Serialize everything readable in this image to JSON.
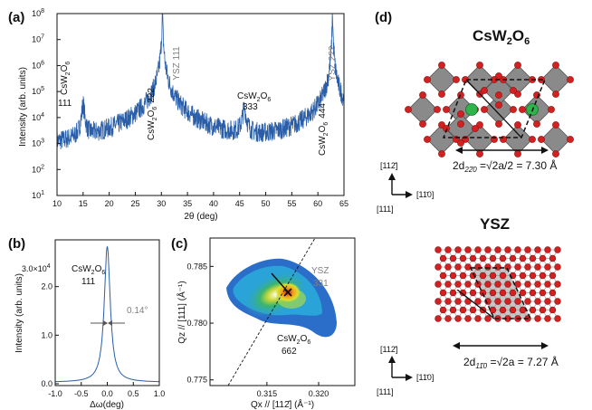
{
  "panels": {
    "a": "(a)",
    "b": "(b)",
    "c": "(c)",
    "d": "(d)"
  },
  "panel_a": {
    "ylabel": "Intensity (arb. units)",
    "xlabel": "2θ (deg)",
    "x_ticks": [
      "10",
      "15",
      "20",
      "25",
      "30",
      "35",
      "40",
      "45",
      "50",
      "55",
      "60",
      "65"
    ],
    "y_ticks": [
      {
        "base": "10",
        "exp": "1"
      },
      {
        "base": "10",
        "exp": "2"
      },
      {
        "base": "10",
        "exp": "3"
      },
      {
        "base": "10",
        "exp": "4"
      },
      {
        "base": "10",
        "exp": "5"
      },
      {
        "base": "10",
        "exp": "6"
      },
      {
        "base": "10",
        "exp": "7"
      },
      {
        "base": "10",
        "exp": "8"
      }
    ],
    "peak_labels": {
      "p111": {
        "compound": "CsW",
        "sub1": "2",
        "mid": "O",
        "sub2": "6",
        "index": "111"
      },
      "p222": {
        "compound": "CsW",
        "sub1": "2",
        "mid": "O",
        "sub2": "6",
        "index": "222"
      },
      "ysz111": "YSZ 111",
      "p333": {
        "compound": "CsW",
        "sub1": "2",
        "mid": "O",
        "sub2": "6",
        "index": "333"
      },
      "p444": {
        "compound": "CsW",
        "sub1": "2",
        "mid": "O",
        "sub2": "6",
        "index": "444"
      },
      "ysz222": "YSZ 222"
    }
  },
  "panel_b": {
    "ylabel": "Intensity (arb. units)",
    "xlabel": "Δω(deg)",
    "x_ticks": [
      "-1.0",
      "-0.5",
      "0.0",
      "0.5",
      "1.0"
    ],
    "y_ticks": [
      "0.0",
      "1.0",
      "2.0"
    ],
    "y_top": {
      "base": "3.0×10",
      "exp": "4"
    },
    "label": {
      "compound": "CsW",
      "sub1": "2",
      "mid": "O",
      "sub2": "6",
      "index": "111"
    },
    "fwhm": "0.14°"
  },
  "panel_c": {
    "ylabel": "Qz // [111] (Å⁻¹)",
    "xlabel": "Qx // [112̄] (Å⁻¹)",
    "x_ticks": [
      "0.315",
      "0.320"
    ],
    "y_ticks": [
      "0.775",
      "0.780",
      "0.785"
    ],
    "ysz_label": "YSZ",
    "ysz_index": "331",
    "csw_label": {
      "compound": "CsW",
      "sub1": "2",
      "mid": "O",
      "sub2": "6",
      "index": "662"
    }
  },
  "panel_d": {
    "top_title": {
      "compound": "CsW",
      "sub1": "2",
      "mid": "O",
      "sub2": "6"
    },
    "top_formula": {
      "pre": "2d",
      "sub": "22̄0",
      "post": " =√2a/2 = 7.30 Å"
    },
    "bottom_title": "YSZ",
    "bottom_formula": {
      "pre": "2d",
      "sub": "11̄0",
      "post": " =√2a = 7.27 Å"
    },
    "dir_up": "[112̄]",
    "dir_right": "[11̄0]",
    "dir_out": "[111]"
  },
  "colors": {
    "trace": "#2a5ea8",
    "gray_label": "#7f7f7f",
    "oxygen": "#d42020",
    "cesium": "#2fb34a",
    "octahedron": "#7d7d7d"
  },
  "chart_data": [
    {
      "type": "line",
      "title": "",
      "xlabel": "2θ (deg)",
      "ylabel": "Intensity (arb. units)",
      "xlim": [
        10,
        65
      ],
      "ylim": [
        10,
        100000000
      ],
      "yscale": "log",
      "peaks": [
        {
          "x": 15.0,
          "y": 30000,
          "label": "CsW2O6 111"
        },
        {
          "x": 30.0,
          "y": 200000,
          "label": "CsW2O6 222"
        },
        {
          "x": 30.2,
          "y": 100000000,
          "label": "YSZ 111"
        },
        {
          "x": 45.9,
          "y": 20000,
          "label": "CsW2O6 333"
        },
        {
          "x": 62.3,
          "y": 3000,
          "label": "CsW2O6 444"
        },
        {
          "x": 62.8,
          "y": 100000000,
          "label": "YSZ 222"
        }
      ]
    },
    {
      "type": "line",
      "title": "",
      "xlabel": "Δω(deg)",
      "ylabel": "Intensity (arb. units)",
      "xlim": [
        -1.0,
        1.0
      ],
      "ylim": [
        0,
        30000
      ],
      "peak_center": 0.0,
      "peak_height": 30000,
      "fwhm_deg": 0.14
    },
    {
      "type": "heatmap",
      "title": "",
      "xlabel": "Qx // [112̄] (Å⁻¹)",
      "ylabel": "Qz // [111] (Å⁻¹)",
      "xlim": [
        0.3095,
        0.3235
      ],
      "ylim": [
        0.7745,
        0.7875
      ],
      "maximum": {
        "x": 0.3157,
        "y": 0.7832
      },
      "marker": {
        "x": 0.3157,
        "y": 0.7832,
        "label": "YSZ 331"
      }
    }
  ]
}
